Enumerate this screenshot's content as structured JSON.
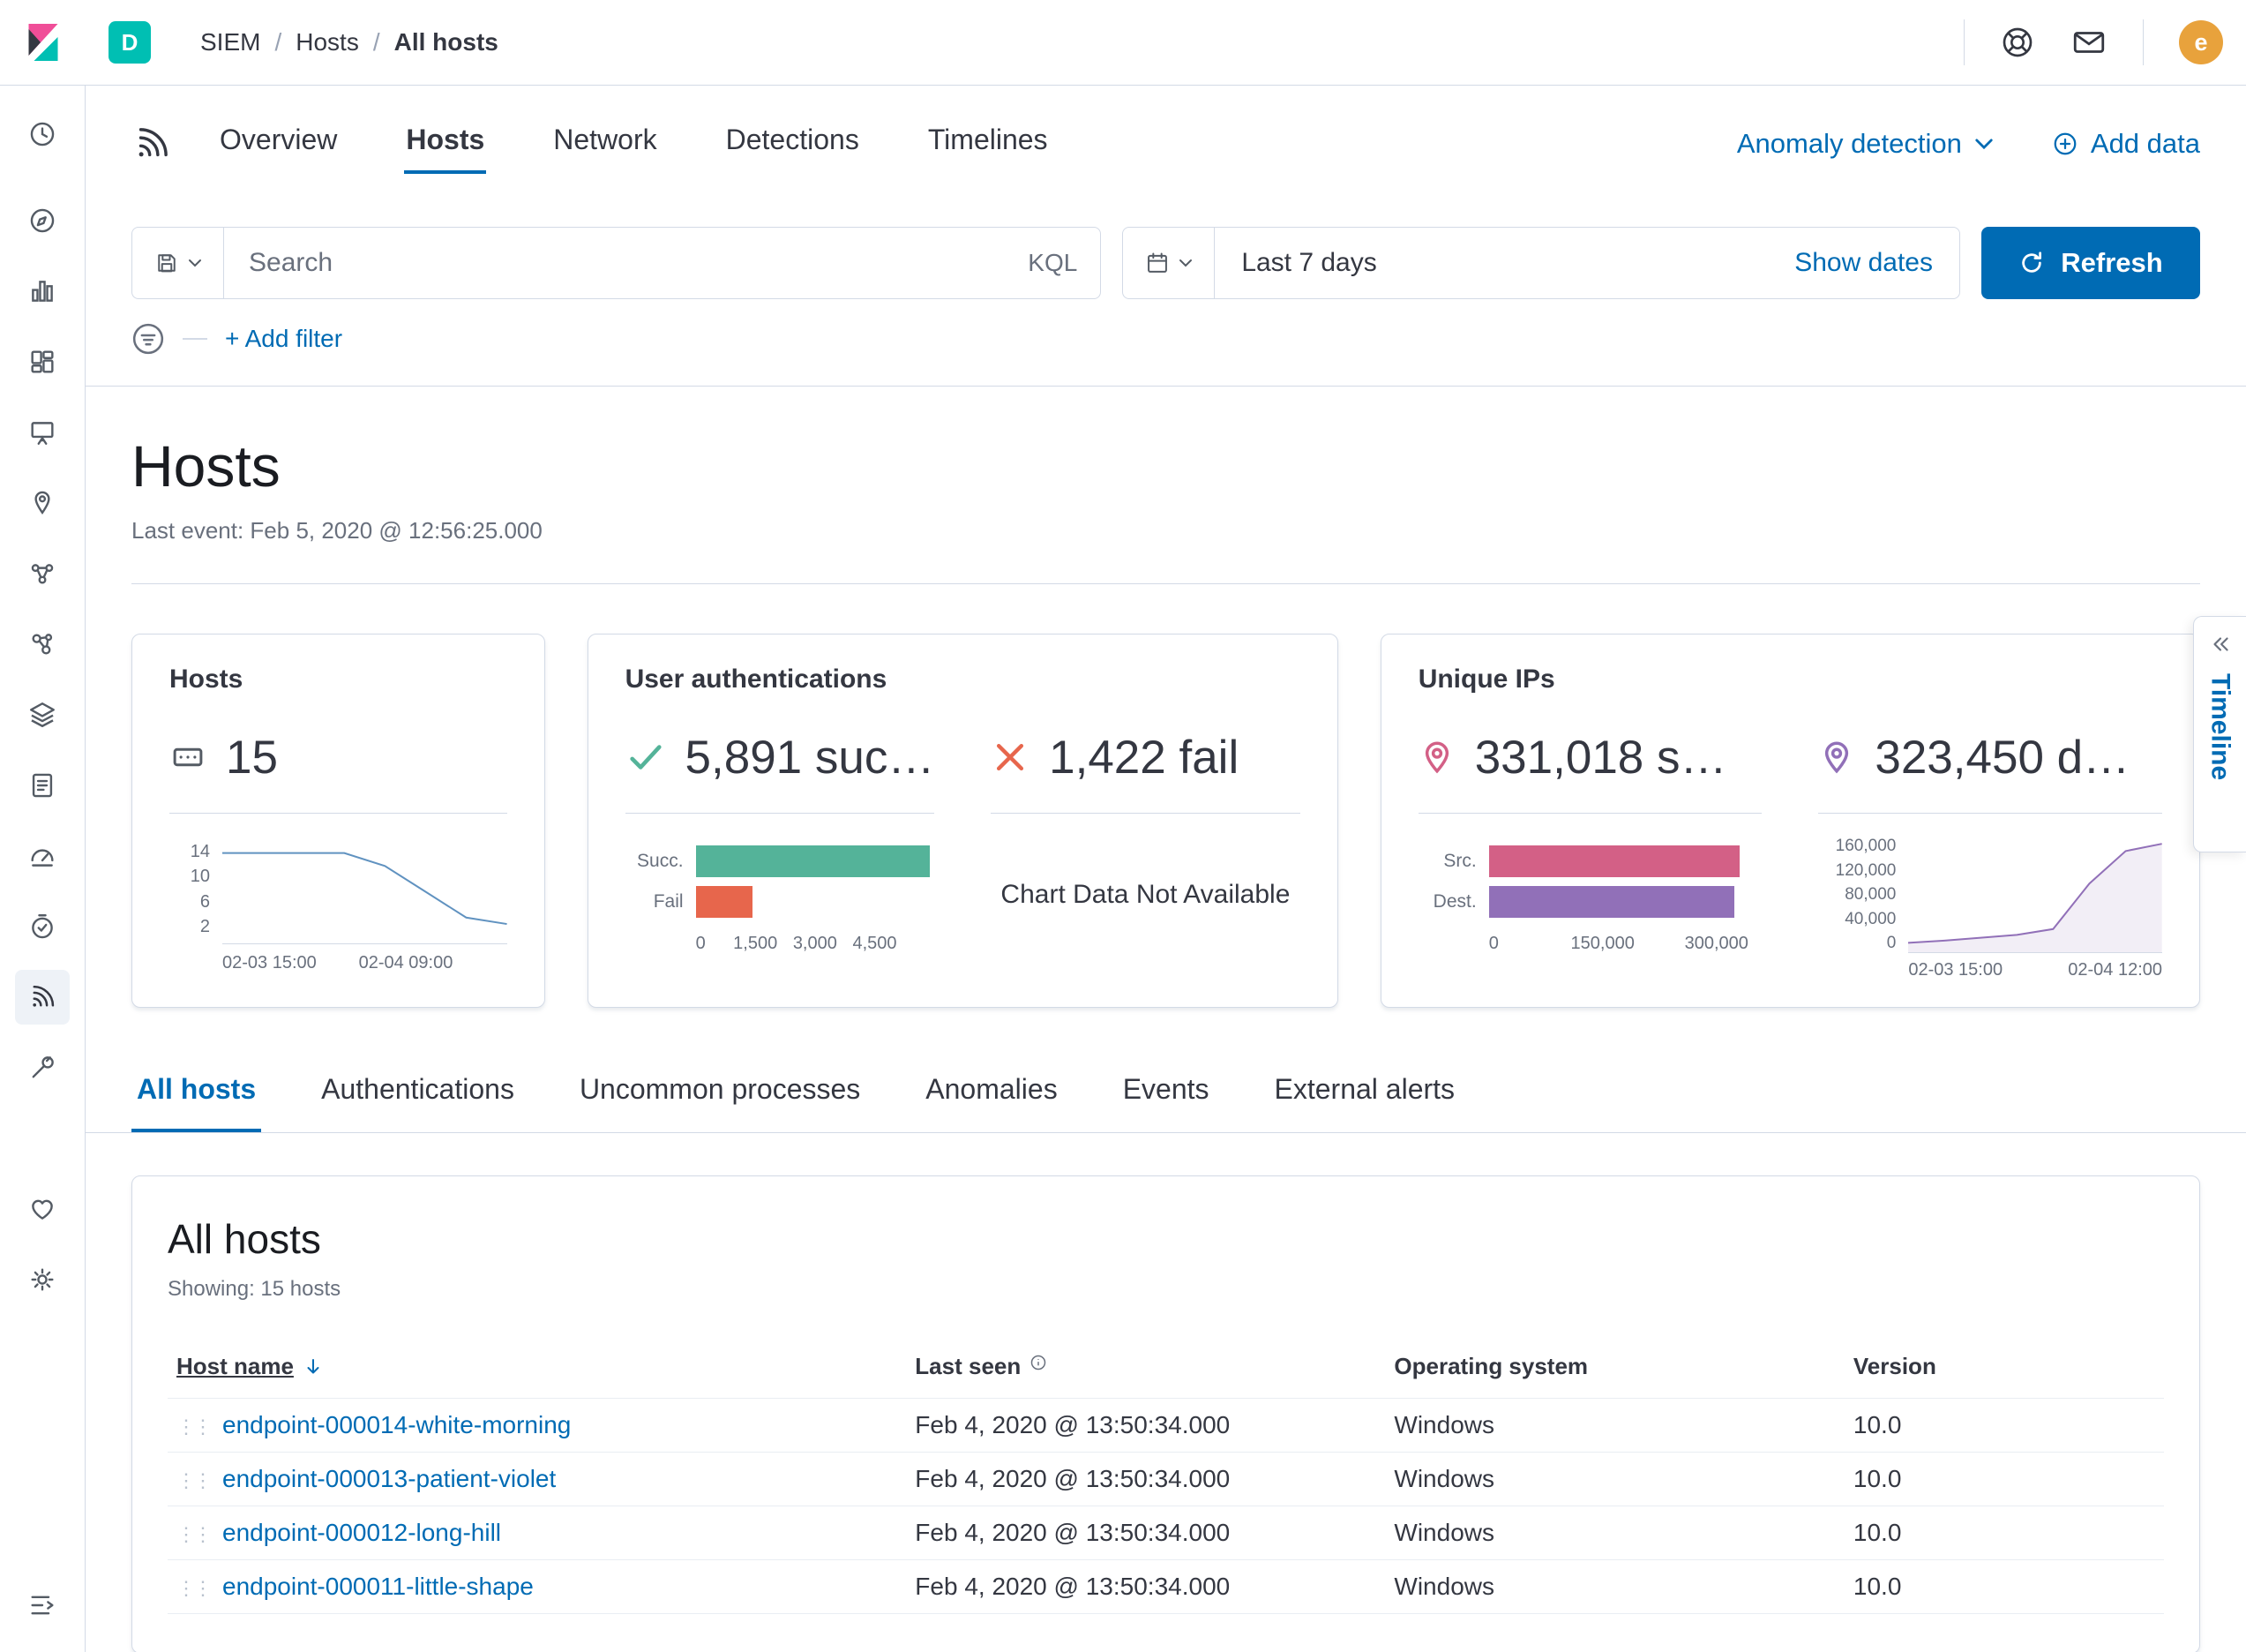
{
  "topbar": {
    "space_badge": "D",
    "breadcrumbs": [
      "SIEM",
      "Hosts",
      "All hosts"
    ],
    "avatar_initial": "e",
    "icons": [
      "help-icon",
      "mail-icon"
    ]
  },
  "sidebar": {
    "items": [
      "recently-viewed",
      "discover",
      "visualize",
      "dashboard",
      "canvas",
      "maps",
      "machine-learning",
      "graph",
      "metrics",
      "logs",
      "apm",
      "uptime",
      "siem",
      "dev-tools",
      "stack-monitoring",
      "management"
    ],
    "active_item": "siem",
    "collapse": "collapse-menu"
  },
  "app_nav": {
    "tabs": [
      {
        "label": "Overview",
        "active": false
      },
      {
        "label": "Hosts",
        "active": true
      },
      {
        "label": "Network",
        "active": false
      },
      {
        "label": "Detections",
        "active": false
      },
      {
        "label": "Timelines",
        "active": false
      }
    ],
    "anomaly_detection": "Anomaly detection",
    "add_data_label": "Add data"
  },
  "search": {
    "placeholder": "Search",
    "value": "",
    "kql": "KQL",
    "date_range": "Last 7 days",
    "show_dates": "Show dates",
    "refresh_label": "Refresh",
    "add_filter": "+ Add filter"
  },
  "page": {
    "title": "Hosts",
    "last_event": "Last event: Feb 5, 2020 @ 12:56:25.000"
  },
  "cards": {
    "hosts": {
      "title": "Hosts",
      "count": "15",
      "spark": {
        "color": "#6092C0",
        "values": [
          14,
          14,
          14,
          14,
          12,
          8,
          4,
          3
        ],
        "ymax": 16,
        "yticks": [
          "14",
          "10",
          "6",
          "2"
        ],
        "xticks": [
          "02-03 15:00",
          "02-04 09:00"
        ]
      }
    },
    "auth": {
      "title": "User authentications",
      "success": "5,891 suc…",
      "fail": "1,422 fail",
      "no_data": "Chart Data Not Available",
      "bars": {
        "max": 6000,
        "rows": [
          {
            "label": "Succ.",
            "value": 5891,
            "color": "#54B399"
          },
          {
            "label": "Fail",
            "value": 1422,
            "color": "#E7664C"
          }
        ],
        "ticks": [
          {
            "v": 0,
            "label": "0"
          },
          {
            "v": 1500,
            "label": "1,500"
          },
          {
            "v": 3000,
            "label": "3,000"
          },
          {
            "v": 4500,
            "label": "4,500"
          }
        ]
      }
    },
    "ips": {
      "title": "Unique IPs",
      "source": "331,018 s…",
      "dest": "323,450 d…",
      "bars": {
        "max": 360000,
        "rows": [
          {
            "label": "Src.",
            "value": 331018,
            "color": "#D36086"
          },
          {
            "label": "Dest.",
            "value": 323450,
            "color": "#9170B8"
          }
        ],
        "ticks": [
          {
            "v": 0,
            "label": "0"
          },
          {
            "v": 150000,
            "label": "150,000"
          },
          {
            "v": 300000,
            "label": "300,000"
          }
        ]
      },
      "area": {
        "color": "#9170B8",
        "values": [
          13000,
          16000,
          20000,
          24000,
          32000,
          95000,
          140000,
          150000
        ],
        "ymax": 160000,
        "yticks": [
          "160,000",
          "120,000",
          "80,000",
          "40,000",
          "0"
        ],
        "xticks": [
          "02-03 15:00",
          "02-04 12:00"
        ]
      }
    }
  },
  "sec_tabs": [
    {
      "label": "All hosts",
      "active": true
    },
    {
      "label": "Authentications",
      "active": false
    },
    {
      "label": "Uncommon processes",
      "active": false
    },
    {
      "label": "Anomalies",
      "active": false
    },
    {
      "label": "Events",
      "active": false
    },
    {
      "label": "External alerts",
      "active": false
    }
  ],
  "panel": {
    "title": "All hosts",
    "showing": "Showing: 15 hosts",
    "columns": [
      "Host name",
      "Last seen",
      "Operating system",
      "Version"
    ],
    "rows": [
      {
        "host": "endpoint-000014-white-morning",
        "last_seen": "Feb 4, 2020 @ 13:50:34.000",
        "os": "Windows",
        "version": "10.0"
      },
      {
        "host": "endpoint-000013-patient-violet",
        "last_seen": "Feb 4, 2020 @ 13:50:34.000",
        "os": "Windows",
        "version": "10.0"
      },
      {
        "host": "endpoint-000012-long-hill",
        "last_seen": "Feb 4, 2020 @ 13:50:34.000",
        "os": "Windows",
        "version": "10.0"
      },
      {
        "host": "endpoint-000011-little-shape",
        "last_seen": "Feb 4, 2020 @ 13:50:34.000",
        "os": "Windows",
        "version": "10.0"
      }
    ]
  },
  "timeline": {
    "label": "Timeline"
  },
  "colors": {
    "primary": "#006BB4",
    "success": "#54B399",
    "danger": "#E7664C",
    "vis_pink": "#D36086",
    "vis_purple": "#9170B8",
    "vis_blue": "#6092C0",
    "space_badge_bg": "#00BFB3",
    "avatar_bg": "#E8A23C"
  }
}
